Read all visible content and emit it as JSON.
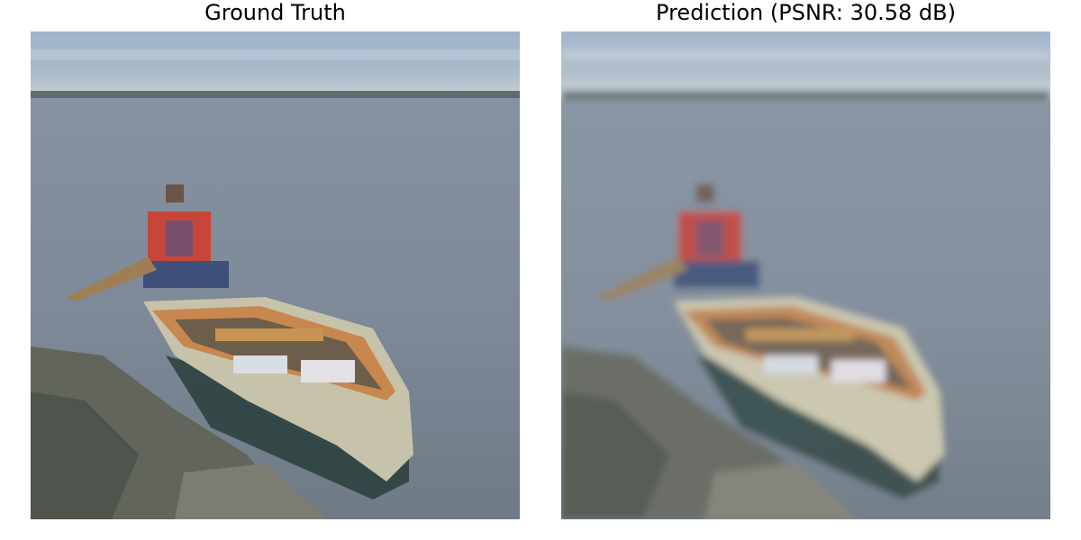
{
  "figure": {
    "panels": [
      {
        "title": "Ground Truth",
        "image_description_icon": "boat-on-lake-image"
      },
      {
        "title": "Prediction (PSNR: 30.58 dB)",
        "image_description_icon": "boat-on-lake-image"
      }
    ],
    "colors": {
      "sky": "#8fa3bf",
      "water": "#7b8796",
      "boat_hull": "#c9c6ad",
      "boat_rim": "#c8874f",
      "life_vest": "#c8453a",
      "rocks": "#5f6359"
    }
  }
}
